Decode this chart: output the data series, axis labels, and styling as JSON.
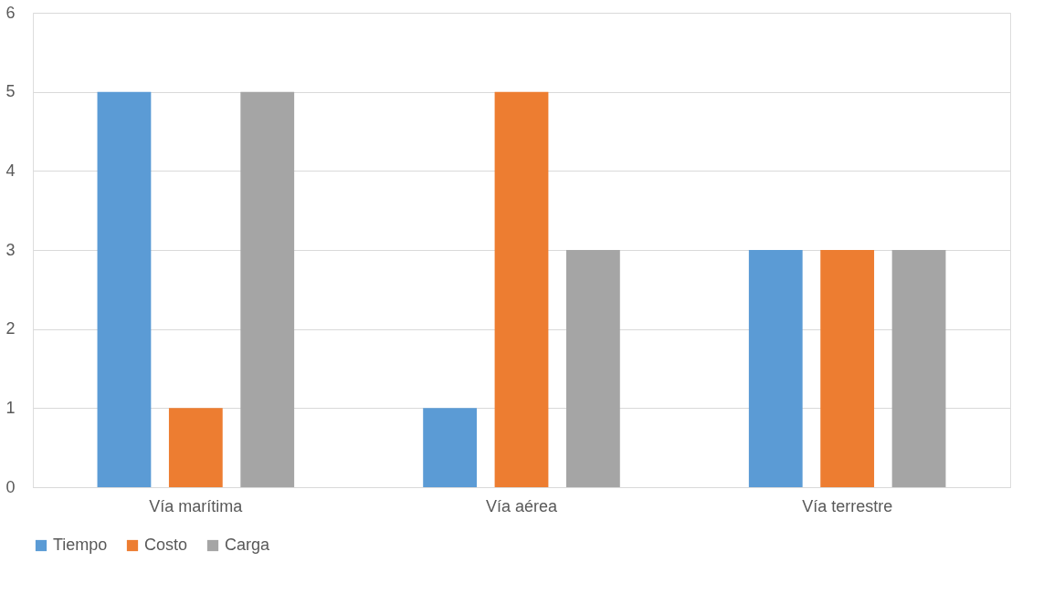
{
  "chart_data": {
    "type": "bar",
    "categories": [
      "Vía marítima",
      "Vía aérea",
      "Vía terrestre"
    ],
    "series": [
      {
        "name": "Tiempo",
        "color": "#5b9bd5",
        "values": [
          5,
          1,
          3
        ]
      },
      {
        "name": "Costo",
        "color": "#ed7d31",
        "values": [
          1,
          5,
          3
        ]
      },
      {
        "name": "Carga",
        "color": "#a5a5a5",
        "values": [
          5,
          3,
          3
        ]
      }
    ],
    "ylim": [
      0,
      6
    ],
    "yticks": [
      0,
      1,
      2,
      3,
      4,
      5,
      6
    ],
    "grid": "y",
    "legend": "bottom"
  }
}
